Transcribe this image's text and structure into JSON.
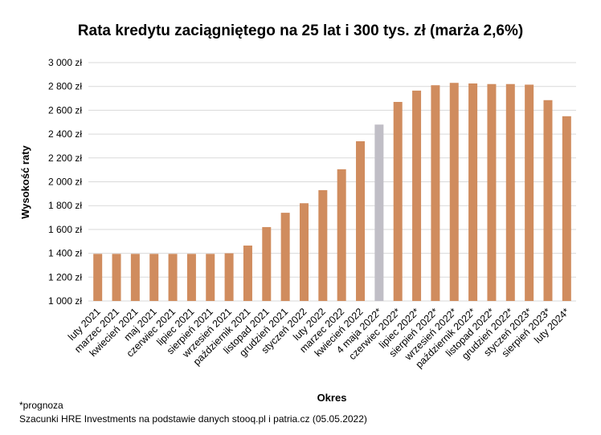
{
  "chart_data": {
    "type": "bar",
    "title": "Rata kredytu zaciągniętego na 25 lat i 300 tys. zł (marża 2,6%)",
    "xlabel": "Okres",
    "ylabel": "Wysokość raty",
    "ylim": [
      1000,
      3000
    ],
    "yticks": [
      1000,
      1200,
      1400,
      1600,
      1800,
      2000,
      2200,
      2400,
      2600,
      2800,
      3000
    ],
    "ytick_suffix": " zł",
    "grid": true,
    "categories": [
      "luty 2021",
      "marzec 2021",
      "kwiecień 2021",
      "maj 2021",
      "czerwiec 2021",
      "lipiec 2021",
      "sierpień 2021",
      "wrzesień 2021",
      "październik 2021",
      "listopad 2021",
      "grudzień 2021",
      "styczeń 2022",
      "luty 2022",
      "marzec 2022",
      "kwiecień 2022",
      "4 maja 2022*",
      "czerwiec 2022*",
      "lipiec 2022*",
      "sierpień 2022*",
      "wrzesień 2022*",
      "październik 2022*",
      "listopad 2022*",
      "grudzień 2022*",
      "styczeń 2023*",
      "sierpień 2023*",
      "luty 2024*"
    ],
    "values": [
      1395,
      1395,
      1395,
      1395,
      1395,
      1395,
      1395,
      1400,
      1465,
      1620,
      1740,
      1820,
      1930,
      2105,
      2340,
      2480,
      2670,
      2765,
      2810,
      2830,
      2825,
      2820,
      2820,
      2815,
      2685,
      2550
    ],
    "highlight_index": 15,
    "colors": {
      "bar": "#D08C5E",
      "highlight": "#C0BEC6",
      "grid": "#D9D9D9"
    }
  },
  "footnotes": {
    "forecast": "*prognoza",
    "source": "Szacunki HRE Investments na podstawie danych stooq.pl i patria.cz (05.05.2022)"
  }
}
